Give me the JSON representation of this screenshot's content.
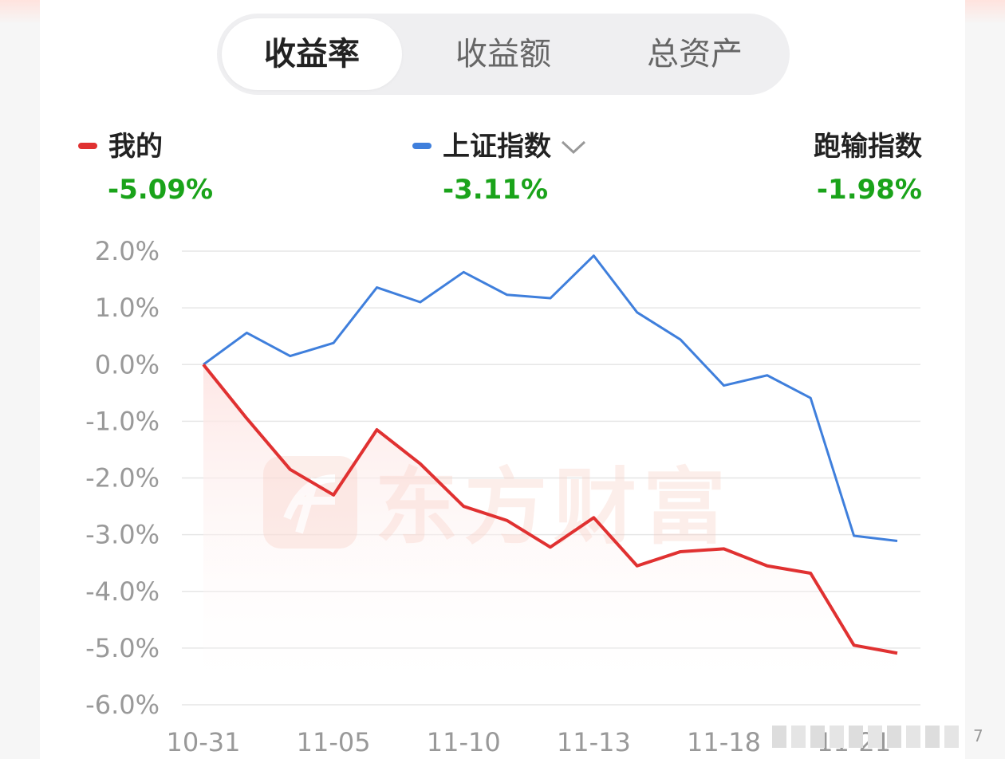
{
  "tabs": [
    {
      "label": "收益率",
      "active": true
    },
    {
      "label": "收益额",
      "active": false
    },
    {
      "label": "总资产",
      "active": false
    }
  ],
  "legend": {
    "mine": {
      "label": "我的",
      "value": "-5.09%",
      "color": "#e03131"
    },
    "index": {
      "label": "上证指数",
      "value": "-3.11%",
      "color": "#3f7fdc",
      "icon": "chevron-down-icon"
    },
    "diff": {
      "label": "跑输指数",
      "value": "-1.98%"
    },
    "value_color": "#1aa31a"
  },
  "watermark": "东方财富",
  "chart_data": {
    "type": "line",
    "ylim": [
      -6,
      2
    ],
    "yticks": [
      "2.0%",
      "1.0%",
      "0.0%",
      "-1.0%",
      "-2.0%",
      "-3.0%",
      "-4.0%",
      "-5.0%",
      "-6.0%"
    ],
    "xticks": [
      "10-31",
      "11-05",
      "11-10",
      "11-13",
      "11-18",
      "11-21"
    ],
    "grid": true,
    "series": [
      {
        "name": "我的",
        "color": "#e03131",
        "values": [
          0,
          -0.95,
          -1.85,
          -2.3,
          -1.15,
          -1.75,
          -2.5,
          -2.75,
          -3.22,
          -2.7,
          -3.55,
          -3.3,
          -3.25,
          -3.55,
          -3.68,
          -4.95,
          -5.09
        ]
      },
      {
        "name": "上证指数",
        "color": "#3f7fdc",
        "values": [
          0,
          0.56,
          0.15,
          0.38,
          1.36,
          1.1,
          1.63,
          1.23,
          1.17,
          1.92,
          0.92,
          0.44,
          -0.37,
          -0.19,
          -0.59,
          -3.02,
          -3.11
        ]
      }
    ]
  },
  "footer_page": "7"
}
